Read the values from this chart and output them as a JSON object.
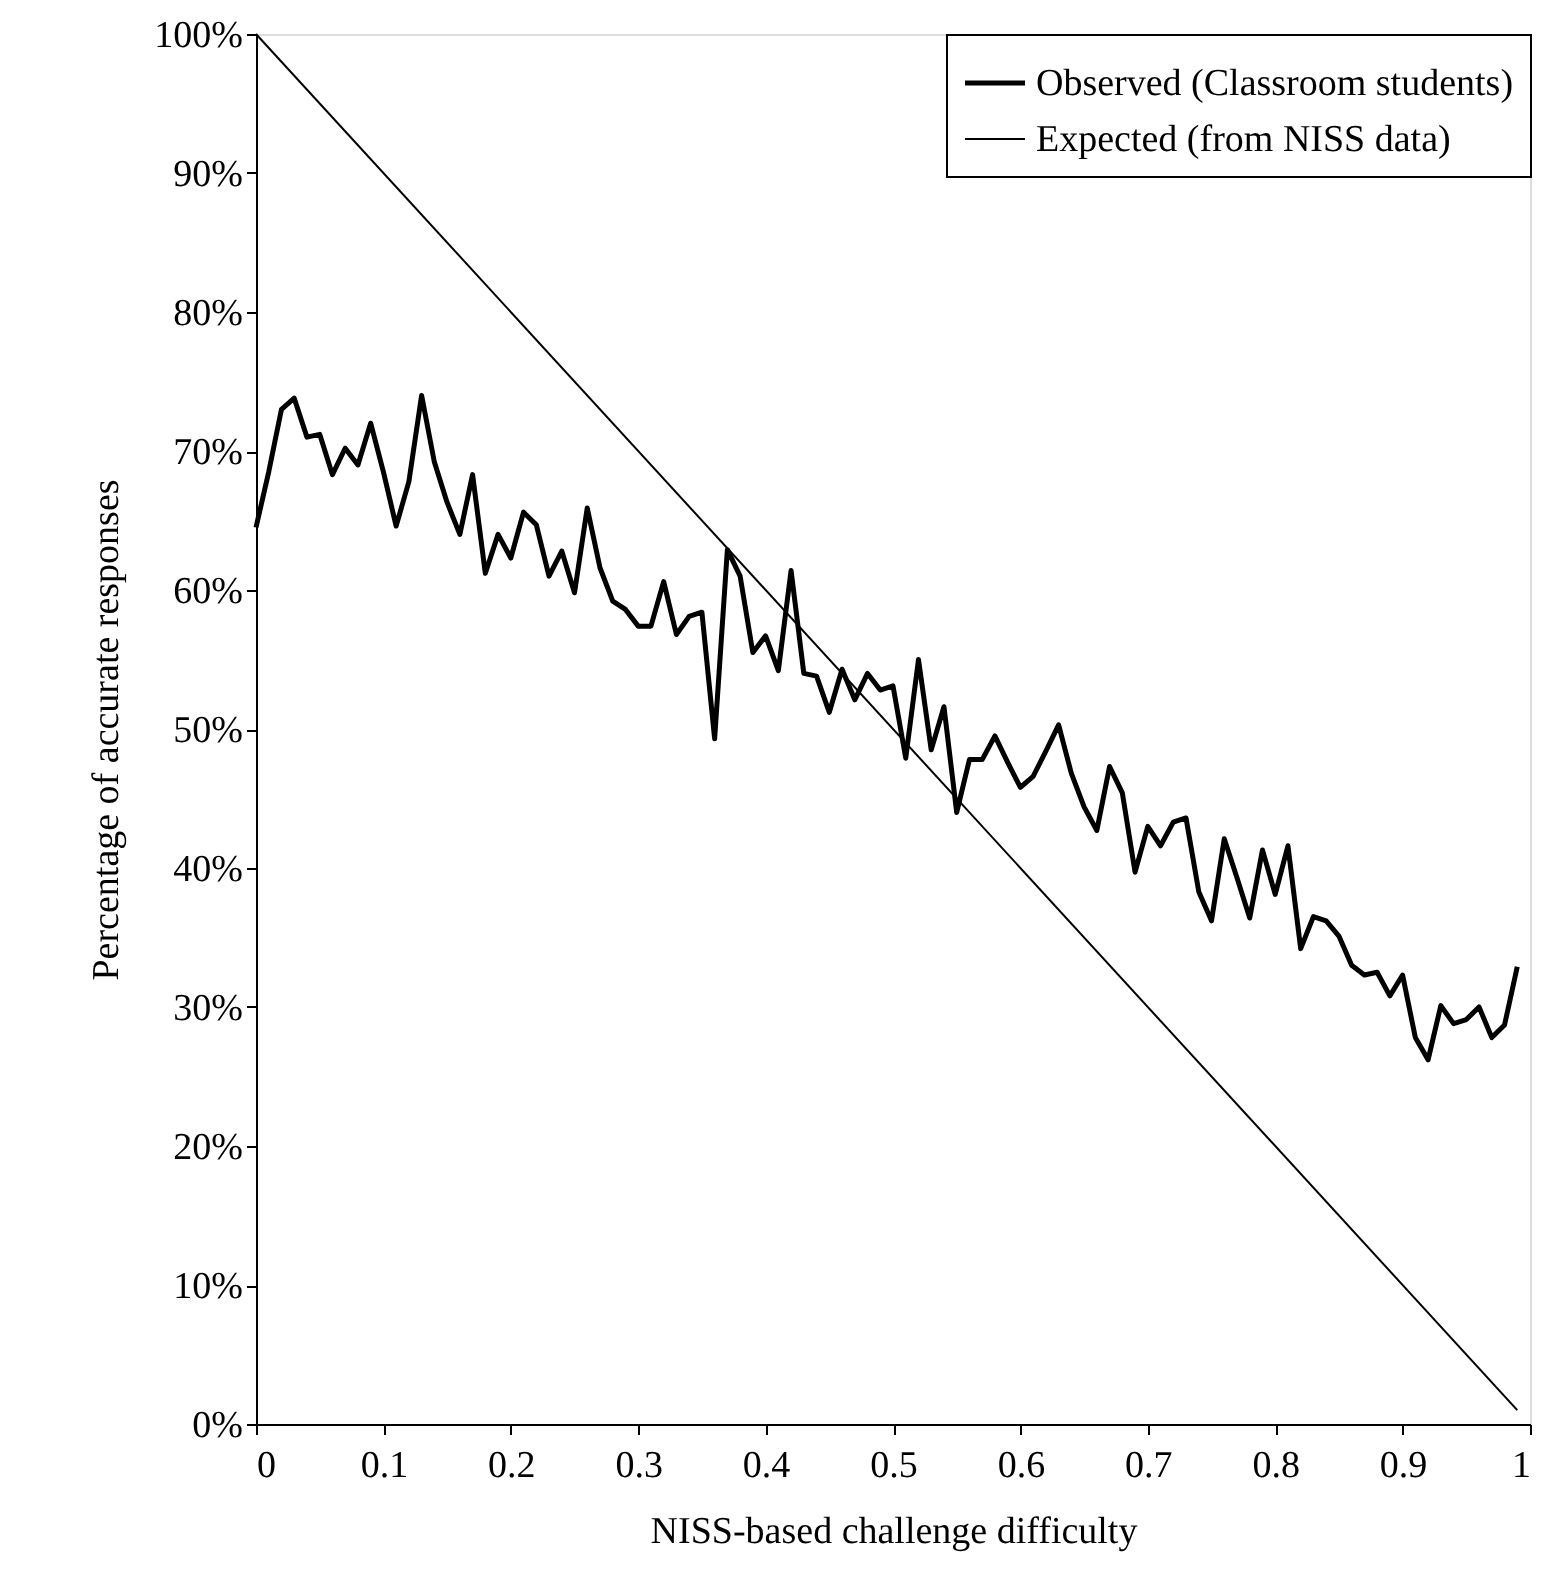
{
  "chart_data": {
    "type": "line",
    "xlabel": "NISS-based challenge difficulty",
    "ylabel": "Percentage of accurate responses",
    "series": [
      {
        "name": "Observed (Classroom students)",
        "color": "#000000",
        "x": [
          0,
          0.01,
          0.02,
          0.03,
          0.04,
          0.05,
          0.06,
          0.07,
          0.08,
          0.09,
          0.1,
          0.11,
          0.12,
          0.13,
          0.14,
          0.15,
          0.16,
          0.17,
          0.18,
          0.19,
          0.2,
          0.21,
          0.22,
          0.23,
          0.24,
          0.25,
          0.26,
          0.27,
          0.28,
          0.29,
          0.3,
          0.31,
          0.32,
          0.33,
          0.34,
          0.35,
          0.36,
          0.37,
          0.38,
          0.39,
          0.4,
          0.41,
          0.42,
          0.43,
          0.44,
          0.45,
          0.46,
          0.47,
          0.48,
          0.49,
          0.5,
          0.51,
          0.52,
          0.53,
          0.54,
          0.55,
          0.56,
          0.57,
          0.58,
          0.59,
          0.6,
          0.61,
          0.62,
          0.63,
          0.64,
          0.65,
          0.66,
          0.67,
          0.68,
          0.69,
          0.7,
          0.71,
          0.72,
          0.73,
          0.74,
          0.75,
          0.76,
          0.77,
          0.78,
          0.79,
          0.8,
          0.81,
          0.82,
          0.83,
          0.84,
          0.85,
          0.86,
          0.87,
          0.88,
          0.89,
          0.9,
          0.91,
          0.92,
          0.93,
          0.94,
          0.95,
          0.96,
          0.97,
          0.98,
          0.99
        ],
        "values": [
          64.5,
          68.5,
          73,
          73.8,
          71,
          71.2,
          68.3,
          70.2,
          69,
          72,
          68.5,
          64.6,
          67.8,
          74,
          69.2,
          66.3,
          64,
          68.3,
          61.2,
          64,
          62.3,
          65.6,
          64.7,
          61,
          62.8,
          59.8,
          65.9,
          61.6,
          59.2,
          58.6,
          57.4,
          57.4,
          60.6,
          56.8,
          58.1,
          58.4,
          49.3,
          62.9,
          61,
          55.5,
          56.7,
          54.2,
          61.4,
          54,
          53.8,
          51.2,
          54.3,
          52.1,
          54,
          52.8,
          53.1,
          47.9,
          55,
          48.5,
          51.6,
          44,
          47.8,
          47.8,
          49.5,
          47.6,
          45.8,
          46.6,
          48.4,
          50.3,
          46.8,
          44.4,
          42.7,
          47.3,
          45.4,
          39.7,
          43,
          41.6,
          43.3,
          43.6,
          38.3,
          36.2,
          42.1,
          39.3,
          36.4,
          41.3,
          38.1,
          41.6,
          34.2,
          36.5,
          36.2,
          35.1,
          33,
          32.3,
          32.5,
          30.8,
          32.3,
          27.8,
          26.2,
          30.1,
          28.8,
          29.1,
          30,
          27.8,
          28.7,
          32.9
        ]
      },
      {
        "name": "Expected (from NISS data)",
        "color": "#000000",
        "x": [
          0,
          0.99
        ],
        "values": [
          100,
          1
        ]
      }
    ],
    "xlim": [
      0,
      1
    ],
    "xticks": [
      0,
      0.1,
      0.2,
      0.3,
      0.4,
      0.5,
      0.6,
      0.7,
      0.8,
      0.9,
      1
    ],
    "ylim": [
      0,
      100
    ],
    "yticks": [
      {
        "value": 0,
        "label": "0%"
      },
      {
        "value": 10,
        "label": "10%"
      },
      {
        "value": 20,
        "label": "20%"
      },
      {
        "value": 30,
        "label": "30%"
      },
      {
        "value": 40,
        "label": "40%"
      },
      {
        "value": 50,
        "label": "50%"
      },
      {
        "value": 60,
        "label": "60%"
      },
      {
        "value": 70,
        "label": "70%"
      },
      {
        "value": 80,
        "label": "80%"
      },
      {
        "value": 90,
        "label": "90%"
      },
      {
        "value": 100,
        "label": "100%"
      }
    ],
    "grid": false,
    "legend": "top right",
    "line_style": "solid",
    "marker": "none"
  }
}
